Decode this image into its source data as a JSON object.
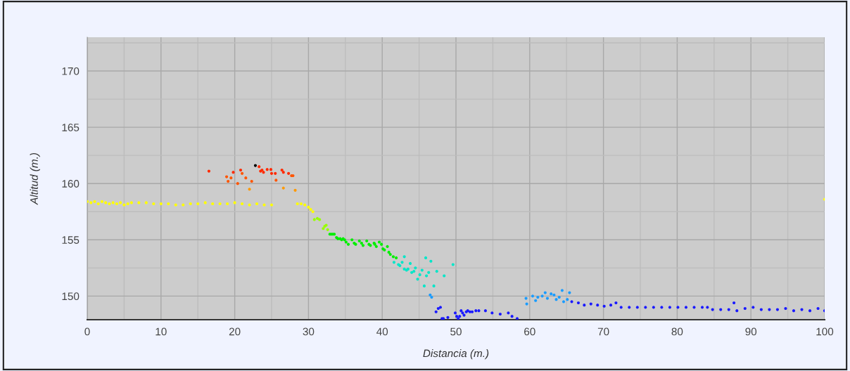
{
  "chart_data": {
    "type": "scatter",
    "xlabel": "Distancia (m.)",
    "ylabel": "Altitud (m.)",
    "xlim": [
      0,
      100
    ],
    "ylim": [
      147.9,
      173
    ],
    "xticks": [
      0,
      {
        "value": 5,
        "label": null
      },
      10,
      {
        "value": 15,
        "label": null
      },
      20,
      {
        "value": 25,
        "label": null
      },
      30,
      {
        "value": 35,
        "label": null
      },
      40,
      {
        "value": 45,
        "label": null
      },
      50,
      {
        "value": 55,
        "label": null
      },
      60,
      {
        "value": 65,
        "label": null
      },
      70,
      {
        "value": 75,
        "label": null
      },
      80,
      {
        "value": 85,
        "label": null
      },
      90,
      {
        "value": 95,
        "label": null
      },
      100
    ],
    "yticks": [
      150,
      {
        "value": 152.5,
        "label": null
      },
      155,
      {
        "value": 157.5,
        "label": null
      },
      160,
      {
        "value": 162.5,
        "label": null
      },
      165,
      {
        "value": 167.5,
        "label": null
      },
      170,
      {
        "value": 172.5,
        "label": null
      }
    ],
    "grid": true,
    "marker": "circle",
    "series": [
      {
        "color": "#ffff00",
        "x": [
          0,
          0.5,
          1,
          1.5,
          2,
          2.5,
          3,
          3.5,
          4,
          4.5,
          5,
          5.5,
          6,
          7,
          8,
          9,
          10,
          11,
          12,
          13,
          14,
          15,
          16,
          17,
          18,
          19,
          20,
          21,
          22,
          23,
          24,
          25,
          28.5,
          29,
          29.5,
          30,
          30.3,
          30.6,
          100
        ],
        "values": [
          158.4,
          158.3,
          158.4,
          158.2,
          158.4,
          158.3,
          158.2,
          158.3,
          158.2,
          158.3,
          158.1,
          158.2,
          158.3,
          158.3,
          158.3,
          158.2,
          158.2,
          158.2,
          158.1,
          158.1,
          158.2,
          158.2,
          158.3,
          158.2,
          158.2,
          158.2,
          158.3,
          158.2,
          158.1,
          158.2,
          158.1,
          158.1,
          158.2,
          158.2,
          158.1,
          157.9,
          157.7,
          157.5,
          158.6
        ]
      },
      {
        "color": "#ff2a00",
        "x": [
          16.5,
          19.8,
          20.8,
          23.3,
          23.5,
          23.7,
          23.9,
          24.4,
          24.9,
          25.0,
          25.5,
          26.4,
          26.6,
          27.3
        ],
        "values": [
          161.1,
          161.0,
          161.2,
          161.5,
          161.1,
          161.2,
          161.0,
          161.25,
          161.25,
          160.9,
          160.9,
          161.2,
          161.0,
          160.9
        ]
      },
      {
        "color": "#ff5500",
        "x": [
          18.9,
          19.1,
          19.5,
          20.4,
          21.0,
          21.5,
          22.3,
          25.6,
          27.7,
          27.9
        ],
        "values": [
          160.6,
          160.2,
          160.5,
          160.0,
          160.9,
          160.5,
          160.2,
          160.3,
          160.7,
          160.7
        ]
      },
      {
        "color": "#ff9900",
        "x": [
          22.0,
          26.6,
          28.2
        ],
        "values": [
          159.5,
          159.6,
          159.4
        ]
      },
      {
        "color": "#000000",
        "x": [
          22.8
        ],
        "values": [
          161.6
        ]
      },
      {
        "color": "#99ff00",
        "x": [
          30.8,
          31.2,
          31.5,
          32.0,
          32.2,
          32.4,
          32.6
        ],
        "values": [
          156.8,
          156.9,
          156.8,
          156.0,
          156.2,
          156.3,
          155.9
        ]
      },
      {
        "color": "#00ee00",
        "x": [
          32.9,
          33.1,
          33.3,
          33.5,
          33.8,
          34.0,
          34.3,
          34.5,
          34.7,
          34.9,
          35.1,
          35.4,
          35.9,
          36.2,
          36.4,
          36.9,
          37.2,
          37.4,
          37.9,
          38.2,
          38.4,
          38.9,
          39.0,
          39.2,
          39.6,
          39.9,
          40.1,
          40.3,
          40.7,
          40.9,
          41.1,
          41.5,
          41.9
        ],
        "values": [
          155.5,
          155.5,
          155.5,
          155.5,
          155.2,
          155.1,
          155.1,
          155.0,
          155.1,
          155.0,
          154.8,
          154.6,
          155.0,
          154.7,
          154.6,
          154.9,
          154.7,
          154.5,
          154.9,
          154.6,
          154.5,
          154.7,
          154.6,
          154.4,
          154.8,
          154.6,
          154.2,
          154.1,
          154.4,
          153.9,
          153.7,
          153.5,
          153.4
        ]
      },
      {
        "color": "#00e6c8",
        "x": [
          41.6,
          42.2,
          42.4,
          42.7,
          43.0,
          43.0,
          43.3,
          43.5,
          43.8,
          44.0,
          44.3,
          44.5,
          44.8,
          45.1,
          45.4,
          45.7,
          45.9,
          46.0,
          46.3,
          46.6,
          47.0,
          47.4,
          48.4,
          49.6
        ],
        "values": [
          153.0,
          152.8,
          152.7,
          153.0,
          153.5,
          152.4,
          152.3,
          152.4,
          152.9,
          152.1,
          152.2,
          152.5,
          151.5,
          151.9,
          152.3,
          150.9,
          153.4,
          151.8,
          152.1,
          153.1,
          150.9,
          152.2,
          151.8,
          152.8
        ]
      },
      {
        "color": "#1a9cff",
        "x": [
          46.5,
          46.7,
          59.5,
          59.6,
          60.4,
          60.8,
          61.1,
          61.7,
          62.1,
          62.4,
          62.9,
          63.3,
          63.6,
          64.0,
          64.4,
          64.6,
          65.1,
          65.4
        ],
        "values": [
          150.1,
          149.9,
          149.8,
          149.3,
          150.0,
          149.6,
          149.9,
          150.0,
          150.3,
          149.8,
          150.2,
          150.1,
          149.7,
          149.9,
          150.5,
          149.5,
          149.7,
          150.3
        ]
      },
      {
        "color": "#1a1aff",
        "x": [
          47.3,
          47.6,
          47.9,
          48.1,
          48.3,
          48.9,
          49.2,
          49.9,
          50.1,
          50.3,
          50.5,
          50.7,
          50.9,
          51.1,
          51.4,
          51.6,
          51.9,
          52.2,
          52.7,
          53.1,
          54.0,
          54.9,
          56.0,
          57.1,
          57.6,
          58.3,
          59.7,
          65.7,
          66.6,
          67.4,
          68.3,
          69.2,
          70.1,
          71.0,
          71.7,
          72.4,
          73.5,
          74.6,
          75.7,
          76.8,
          77.9,
          79.0,
          80.1,
          81.2,
          82.3,
          83.4,
          84.1,
          84.8,
          85.9,
          87.0,
          87.7,
          88.1,
          89.2,
          90.3,
          91.4,
          92.5,
          93.6,
          94.7,
          95.8,
          96.9,
          98.0,
          99.1,
          100
        ],
        "values": [
          148.6,
          148.9,
          149.0,
          148.0,
          148.0,
          148.1,
          null,
          148.5,
          148.2,
          148.0,
          148.2,
          148.7,
          148.5,
          148.3,
          148.6,
          148.7,
          148.6,
          148.6,
          148.7,
          148.7,
          148.7,
          148.5,
          148.4,
          148.5,
          148.2,
          148.0,
          null,
          149.5,
          149.4,
          149.2,
          149.3,
          149.2,
          149.1,
          149.2,
          149.4,
          149.0,
          149.0,
          149.0,
          149.0,
          149.0,
          149.0,
          149.0,
          149.0,
          149.0,
          149.0,
          149.0,
          149.0,
          148.8,
          148.8,
          148.8,
          149.4,
          148.7,
          148.9,
          149.0,
          148.8,
          148.8,
          148.8,
          148.9,
          148.7,
          148.8,
          148.7,
          148.9,
          148.7
        ]
      }
    ]
  }
}
